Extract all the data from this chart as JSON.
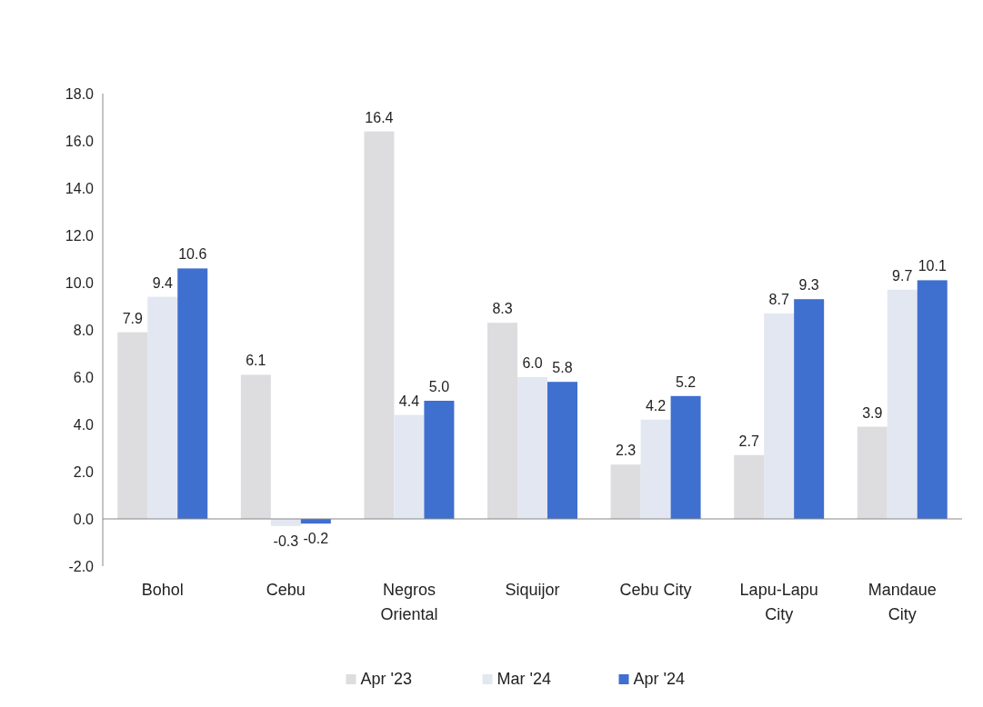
{
  "chart_data": {
    "type": "bar",
    "categories": [
      "Bohol",
      "Cebu",
      "Negros Oriental",
      "Siquijor",
      "Cebu City",
      "Lapu-Lapu City",
      "Mandaue City"
    ],
    "series": [
      {
        "name": "Apr '23",
        "color": "#dddcdf",
        "values": [
          7.9,
          6.1,
          16.4,
          8.3,
          2.3,
          2.7,
          3.9
        ],
        "value_labels": [
          "7.9",
          "6.1",
          "16.4",
          "8.3",
          "2.3",
          "2.7",
          "3.9"
        ]
      },
      {
        "name": "Mar '24",
        "color": "#e3e7f1",
        "values": [
          9.4,
          -0.3,
          4.4,
          6.0,
          4.2,
          8.7,
          9.7
        ],
        "value_labels": [
          "9.4",
          "-0.3",
          "4.4",
          "6.0",
          "4.2",
          "8.7",
          "9.7"
        ]
      },
      {
        "name": "Apr '24",
        "color": "#3f6fcf",
        "values": [
          10.6,
          -0.2,
          5.0,
          5.8,
          5.2,
          9.3,
          10.1
        ],
        "value_labels": [
          "10.6",
          "-0.2",
          "5.0",
          "5.8",
          "5.2",
          "9.3",
          "10.1"
        ]
      }
    ],
    "ylim": [
      -2,
      18
    ],
    "yticks": [
      {
        "value": -2,
        "label": "-2.0"
      },
      {
        "value": 0,
        "label": "0.0"
      },
      {
        "value": 2,
        "label": "2.0"
      },
      {
        "value": 4,
        "label": "4.0"
      },
      {
        "value": 6,
        "label": "6.0"
      },
      {
        "value": 8,
        "label": "8.0"
      },
      {
        "value": 10,
        "label": "10.0"
      },
      {
        "value": 12,
        "label": "12.0"
      },
      {
        "value": 14,
        "label": "14.0"
      },
      {
        "value": 16,
        "label": "16.0"
      },
      {
        "value": 18,
        "label": "18.0"
      }
    ],
    "legend": "bottom"
  }
}
